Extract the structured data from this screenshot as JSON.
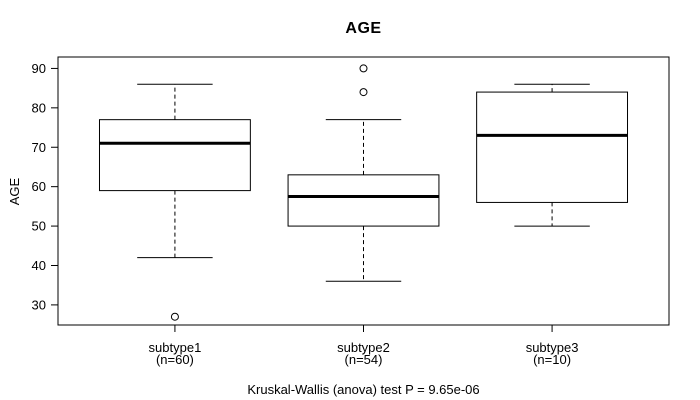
{
  "colors": {
    "line": "#000000",
    "background": "#ffffff",
    "box_fill": "#ffffff",
    "text": "#000000"
  },
  "chart_data": {
    "type": "boxplot",
    "title": "AGE",
    "ylabel": "AGE",
    "xlabel": "",
    "caption": "Kruskal-Wallis (anova) test P = 9.65e-06",
    "grid": false,
    "y_ticks": [
      30,
      40,
      50,
      60,
      70,
      80,
      90
    ],
    "ylim": [
      24.9,
      92.9
    ],
    "categories": [
      "subtype1",
      "subtype2",
      "subtype3"
    ],
    "category_sublabels": [
      "(n=60)",
      "(n=54)",
      "(n=10)"
    ],
    "series": [
      {
        "name": "subtype1",
        "n": 60,
        "whisker_low": 42,
        "q1": 59,
        "median": 71,
        "q3": 77,
        "whisker_high": 86,
        "outliers": [
          27
        ]
      },
      {
        "name": "subtype2",
        "n": 54,
        "whisker_low": 36,
        "q1": 50,
        "median": 57.5,
        "q3": 63,
        "whisker_high": 77,
        "outliers": [
          84,
          90
        ]
      },
      {
        "name": "subtype3",
        "n": 10,
        "whisker_low": 50,
        "q1": 56,
        "median": 73,
        "q3": 84,
        "whisker_high": 86,
        "outliers": []
      }
    ]
  }
}
